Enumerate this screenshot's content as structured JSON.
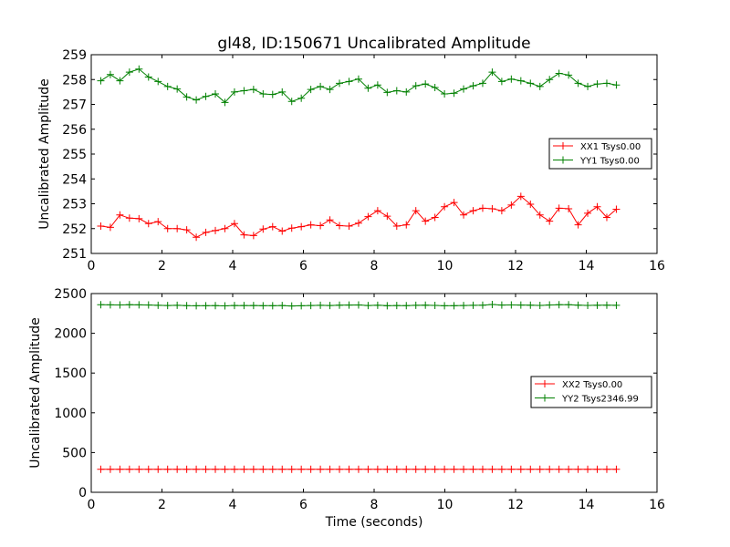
{
  "chart_data": [
    {
      "type": "line",
      "title": "gl48, ID:150671 Uncalibrated Amplitude",
      "xlabel": "",
      "ylabel": "Uncalibrated Amplitude",
      "xlim": [
        0,
        16
      ],
      "ylim": [
        251,
        259
      ],
      "xticks": [
        "0",
        "2",
        "4",
        "6",
        "8",
        "10",
        "12",
        "14",
        "16"
      ],
      "yticks": [
        "251",
        "252",
        "253",
        "254",
        "255",
        "256",
        "257",
        "258",
        "259"
      ],
      "legend_position": "center-right",
      "x": [
        0.27,
        0.54,
        0.81,
        1.08,
        1.35,
        1.62,
        1.89,
        2.16,
        2.43,
        2.7,
        2.97,
        3.24,
        3.51,
        3.78,
        4.05,
        4.32,
        4.59,
        4.86,
        5.13,
        5.4,
        5.67,
        5.94,
        6.21,
        6.48,
        6.75,
        7.02,
        7.29,
        7.56,
        7.83,
        8.1,
        8.37,
        8.64,
        8.91,
        9.18,
        9.45,
        9.72,
        9.99,
        10.26,
        10.53,
        10.8,
        11.07,
        11.34,
        11.61,
        11.88,
        12.15,
        12.42,
        12.69,
        12.96,
        13.23,
        13.5,
        13.77,
        14.04,
        14.31,
        14.58,
        14.85
      ],
      "series": [
        {
          "name": "XX1 Tsys0.00",
          "color": "#ff0000",
          "values": [
            252.1,
            252.05,
            252.55,
            252.42,
            252.4,
            252.2,
            252.28,
            252.0,
            252.0,
            251.95,
            251.65,
            251.85,
            251.92,
            252.0,
            252.2,
            251.75,
            251.72,
            251.98,
            252.08,
            251.9,
            252.02,
            252.08,
            252.15,
            252.12,
            252.35,
            252.12,
            252.1,
            252.22,
            252.48,
            252.72,
            252.5,
            252.1,
            252.15,
            252.72,
            252.3,
            252.45,
            252.88,
            253.05,
            252.55,
            252.72,
            252.82,
            252.8,
            252.72,
            252.95,
            253.3,
            252.98,
            252.55,
            252.3,
            252.82,
            252.8,
            252.15,
            252.62,
            252.88,
            252.45,
            252.78
          ]
        },
        {
          "name": "YY1 Tsys0.00",
          "color": "#008000",
          "values": [
            257.95,
            258.2,
            257.95,
            258.3,
            258.42,
            258.1,
            257.92,
            257.72,
            257.62,
            257.3,
            257.18,
            257.32,
            257.42,
            257.08,
            257.5,
            257.55,
            257.6,
            257.42,
            257.4,
            257.5,
            257.12,
            257.25,
            257.6,
            257.72,
            257.6,
            257.85,
            257.92,
            258.02,
            257.65,
            257.78,
            257.48,
            257.55,
            257.5,
            257.75,
            257.82,
            257.68,
            257.42,
            257.45,
            257.62,
            257.75,
            257.85,
            258.3,
            257.92,
            258.02,
            257.95,
            257.85,
            257.72,
            258.0,
            258.25,
            258.18,
            257.85,
            257.72,
            257.82,
            257.85,
            257.78
          ]
        }
      ]
    },
    {
      "type": "line",
      "title": "",
      "xlabel": "Time (seconds)",
      "ylabel": "Uncalibrated Amplitude",
      "xlim": [
        0,
        16
      ],
      "ylim": [
        0,
        2500
      ],
      "xticks": [
        "0",
        "2",
        "4",
        "6",
        "8",
        "10",
        "12",
        "14",
        "16"
      ],
      "yticks": [
        "0",
        "500",
        "1000",
        "1500",
        "2000",
        "2500"
      ],
      "legend_position": "center-right",
      "x": [
        0.27,
        0.54,
        0.81,
        1.08,
        1.35,
        1.62,
        1.89,
        2.16,
        2.43,
        2.7,
        2.97,
        3.24,
        3.51,
        3.78,
        4.05,
        4.32,
        4.59,
        4.86,
        5.13,
        5.4,
        5.67,
        5.94,
        6.21,
        6.48,
        6.75,
        7.02,
        7.29,
        7.56,
        7.83,
        8.1,
        8.37,
        8.64,
        8.91,
        9.18,
        9.45,
        9.72,
        9.99,
        10.26,
        10.53,
        10.8,
        11.07,
        11.34,
        11.61,
        11.88,
        12.15,
        12.42,
        12.69,
        12.96,
        13.23,
        13.5,
        13.77,
        14.04,
        14.31,
        14.58,
        14.85
      ],
      "series": [
        {
          "name": "XX2 Tsys0.00",
          "color": "#ff0000",
          "values": [
            290,
            290,
            290,
            290,
            290,
            290,
            290,
            290,
            290,
            290,
            290,
            290,
            290,
            290,
            290,
            290,
            290,
            290,
            290,
            290,
            290,
            290,
            290,
            290,
            290,
            290,
            290,
            290,
            290,
            290,
            290,
            290,
            290,
            290,
            290,
            290,
            290,
            290,
            290,
            290,
            290,
            290,
            290,
            290,
            290,
            290,
            290,
            290,
            290,
            290,
            290,
            290,
            290,
            290,
            290
          ]
        },
        {
          "name": "YY2 Tsys2346.99",
          "color": "#008000",
          "values": [
            2360,
            2358,
            2357,
            2360,
            2358,
            2356,
            2352,
            2350,
            2352,
            2348,
            2346,
            2347,
            2348,
            2345,
            2350,
            2349,
            2350,
            2347,
            2347,
            2349,
            2344,
            2346,
            2350,
            2352,
            2350,
            2354,
            2355,
            2357,
            2350,
            2353,
            2347,
            2349,
            2348,
            2352,
            2354,
            2351,
            2346,
            2347,
            2350,
            2352,
            2354,
            2362,
            2355,
            2357,
            2355,
            2354,
            2351,
            2356,
            2360,
            2359,
            2354,
            2351,
            2353,
            2354,
            2352
          ]
        }
      ]
    }
  ]
}
